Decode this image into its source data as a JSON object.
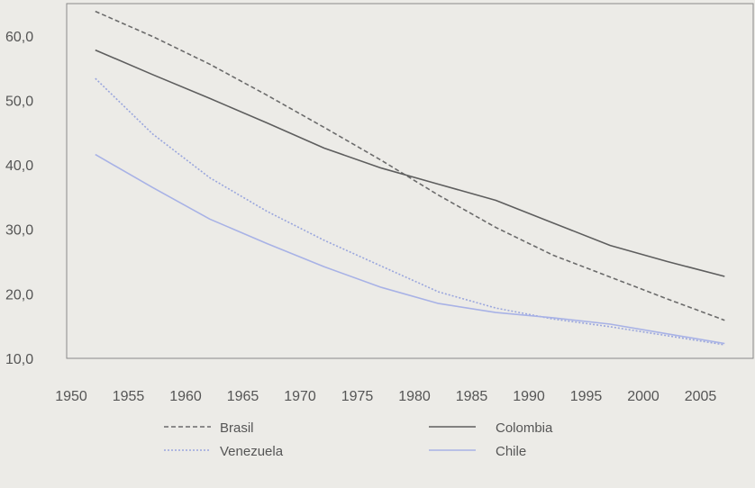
{
  "chart_data": {
    "type": "line",
    "title": "",
    "xlabel": "",
    "ylabel": "",
    "xlim": [
      1950,
      2010
    ],
    "ylim": [
      10,
      65
    ],
    "x_ticks": [
      "1950",
      "1955",
      "1960",
      "1965",
      "1970",
      "1975",
      "1980",
      "1985",
      "1990",
      "1995",
      "2000",
      "2005"
    ],
    "y_ticks": [
      "10,0",
      "20,0",
      "30,0",
      "40,0",
      "50,0",
      "60,0"
    ],
    "grid": false,
    "legend_position": "bottom",
    "x": [
      1952.5,
      1957.5,
      1962.5,
      1967.5,
      1972.5,
      1977.5,
      1982.5,
      1987.5,
      1992.5,
      1997.5,
      2002.5,
      2007.5
    ],
    "series": [
      {
        "name": "Brasil",
        "style": "dashed",
        "color": "#6b6b6b",
        "values": [
          63.8,
          59.9,
          55.6,
          50.8,
          45.8,
          40.7,
          35.3,
          30.3,
          26.0,
          22.6,
          19.2,
          15.9
        ]
      },
      {
        "name": "Colombia",
        "style": "solid",
        "color": "#5e5e5e",
        "values": [
          57.8,
          54.0,
          50.3,
          46.5,
          42.6,
          39.5,
          37.0,
          34.5,
          31.0,
          27.5,
          25.0,
          22.7
        ]
      },
      {
        "name": "Venezuela",
        "style": "dotted",
        "color": "#9aa6dd",
        "values": [
          53.4,
          44.8,
          38.0,
          32.8,
          28.3,
          24.3,
          20.3,
          17.8,
          16.1,
          14.9,
          13.5,
          12.1
        ]
      },
      {
        "name": "Chile",
        "style": "solid",
        "color": "#a8b2e6",
        "values": [
          41.6,
          36.5,
          31.6,
          27.8,
          24.2,
          21.0,
          18.5,
          17.1,
          16.3,
          15.3,
          13.8,
          12.3
        ]
      }
    ]
  }
}
